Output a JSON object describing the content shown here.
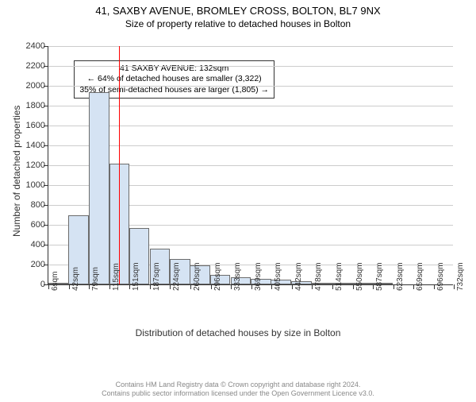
{
  "title": "41, SAXBY AVENUE, BROMLEY CROSS, BOLTON, BL7 9NX",
  "subtitle": "Size of property relative to detached houses in Bolton",
  "chart": {
    "type": "histogram",
    "ylabel": "Number of detached properties",
    "xlabel": "Distribution of detached houses by size in Bolton",
    "ylim": [
      0,
      2400
    ],
    "ytick_step": 200,
    "background_color": "#ffffff",
    "grid_color": "#cccccc",
    "bar_fill": "#d5e3f3",
    "bar_stroke": "#6c6c6c",
    "marker_color": "#ff0000",
    "marker_x_value": 132,
    "x_bin_width": 36.4,
    "bins": [
      {
        "start": 6,
        "count": 20
      },
      {
        "start": 42,
        "count": 700
      },
      {
        "start": 79,
        "count": 1940
      },
      {
        "start": 115,
        "count": 1220
      },
      {
        "start": 151,
        "count": 570
      },
      {
        "start": 188,
        "count": 360
      },
      {
        "start": 224,
        "count": 260
      },
      {
        "start": 260,
        "count": 190
      },
      {
        "start": 296,
        "count": 100
      },
      {
        "start": 333,
        "count": 70
      },
      {
        "start": 369,
        "count": 60
      },
      {
        "start": 405,
        "count": 45
      },
      {
        "start": 442,
        "count": 30
      },
      {
        "start": 478,
        "count": 20
      },
      {
        "start": 514,
        "count": 15
      },
      {
        "start": 550,
        "count": 20
      },
      {
        "start": 587,
        "count": 5
      },
      {
        "start": 623,
        "count": 0
      },
      {
        "start": 660,
        "count": 0
      },
      {
        "start": 696,
        "count": 0
      }
    ],
    "xtick_labels": [
      "6sqm",
      "42sqm",
      "79sqm",
      "115sqm",
      "151sqm",
      "187sqm",
      "224sqm",
      "260sqm",
      "296sqm",
      "333sqm",
      "369sqm",
      "405sqm",
      "442sqm",
      "478sqm",
      "514sqm",
      "550sqm",
      "587sqm",
      "623sqm",
      "659sqm",
      "696sqm",
      "732sqm"
    ],
    "x_range": [
      6,
      732
    ]
  },
  "annotation": {
    "line1": "41 SAXBY AVENUE: 132sqm",
    "line2": "← 64% of detached houses are smaller (3,322)",
    "line3": "35% of semi-detached houses are larger (1,805) →"
  },
  "footer": {
    "line1": "Contains HM Land Registry data © Crown copyright and database right 2024.",
    "line2": "Contains public sector information licensed under the Open Government Licence v3.0."
  }
}
